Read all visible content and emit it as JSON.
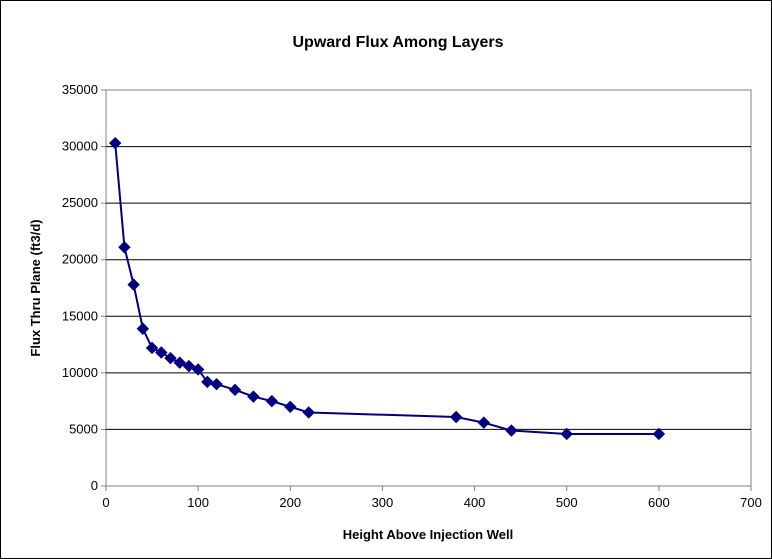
{
  "chart_data": {
    "type": "line",
    "title": "Upward Flux Among Layers",
    "xlabel": "Height Above Injection Well",
    "ylabel": "Flux Thru Plane (ft3/d)",
    "xlim": [
      0,
      700
    ],
    "ylim": [
      0,
      35000
    ],
    "x_ticks": [
      0,
      100,
      200,
      300,
      400,
      500,
      600,
      700
    ],
    "y_ticks": [
      0,
      5000,
      10000,
      15000,
      20000,
      25000,
      30000,
      35000
    ],
    "grid": "horizontal major gridlines",
    "legend": "none",
    "series": [
      {
        "color": "#000080",
        "marker": "diamond",
        "points": [
          [
            10,
            30300
          ],
          [
            20,
            21100
          ],
          [
            30,
            17800
          ],
          [
            40,
            13900
          ],
          [
            50,
            12200
          ],
          [
            60,
            11800
          ],
          [
            70,
            11300
          ],
          [
            80,
            10900
          ],
          [
            90,
            10600
          ],
          [
            100,
            10300
          ],
          [
            110,
            9200
          ],
          [
            120,
            9000
          ],
          [
            140,
            8500
          ],
          [
            160,
            7900
          ],
          [
            180,
            7500
          ],
          [
            200,
            7000
          ],
          [
            220,
            6500
          ],
          [
            380,
            6100
          ],
          [
            410,
            5600
          ],
          [
            440,
            4900
          ],
          [
            500,
            4600
          ],
          [
            600,
            4600
          ]
        ]
      }
    ]
  }
}
